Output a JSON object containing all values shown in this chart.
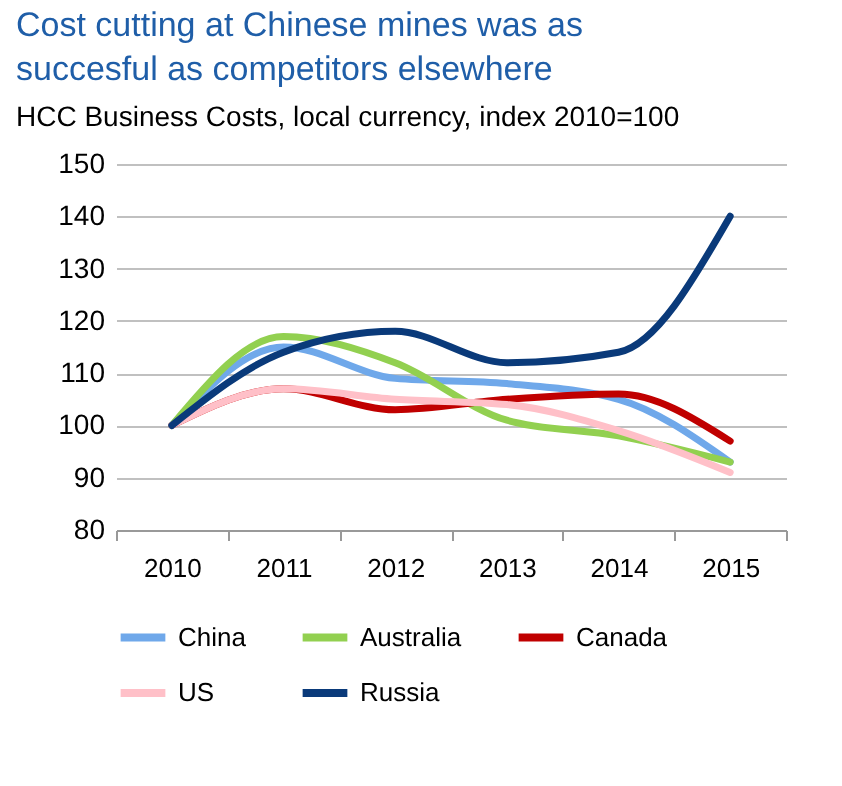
{
  "chart_data": {
    "type": "line",
    "title": "Cost cutting at Chinese mines was as succesful as competitors elsewhere",
    "subtitle": "HCC Business Costs, local currency, index 2010=100",
    "categories": [
      "2010",
      "2011",
      "2012",
      "2013",
      "2014",
      "2015"
    ],
    "series": [
      {
        "name": "China",
        "color": "#6fa8ea",
        "values": [
          100,
          115,
          109,
          108,
          105,
          93
        ]
      },
      {
        "name": "Australia",
        "color": "#92d050",
        "values": [
          100,
          117,
          112,
          101,
          98,
          93
        ]
      },
      {
        "name": "Canada",
        "color": "#c00000",
        "values": [
          100,
          107,
          103,
          105,
          106,
          97
        ]
      },
      {
        "name": "US",
        "color": "#ffc0c8",
        "values": [
          100,
          107,
          105,
          104,
          99,
          91
        ]
      },
      {
        "name": "Russia",
        "color": "#0a3a7a",
        "values": [
          100,
          114,
          118,
          112,
          114,
          140
        ]
      }
    ],
    "ylim": [
      80,
      150
    ],
    "yticks": [
      80,
      90,
      100,
      110,
      120,
      130,
      140,
      150
    ],
    "grid": "y",
    "legend": "bottom"
  }
}
